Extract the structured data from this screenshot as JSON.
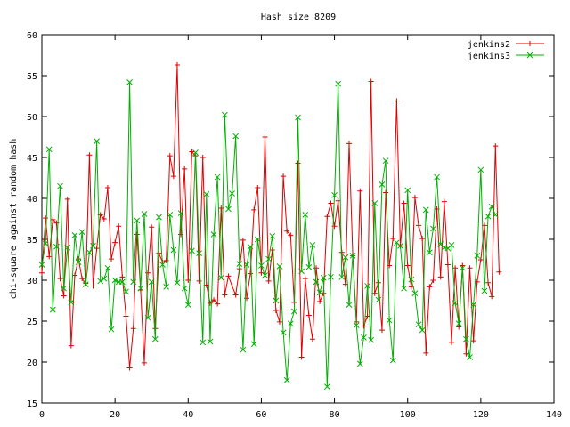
{
  "chart_data": {
    "type": "line",
    "title": "Hash size 8209",
    "xlabel": "",
    "ylabel": "chi-square against random hash",
    "xlim": [
      0,
      140
    ],
    "ylim": [
      15,
      60
    ],
    "xticks": [
      0,
      20,
      40,
      60,
      80,
      100,
      120,
      140
    ],
    "yticks": [
      15,
      20,
      25,
      30,
      35,
      40,
      45,
      50,
      55,
      60
    ],
    "grid": false,
    "legend_position": "top-right",
    "series": [
      {
        "name": "jenkins2",
        "color": "#e00000",
        "marker": "plus",
        "values": [
          30.9,
          37.6,
          32.9,
          37.4,
          37.0,
          30.2,
          28.1,
          39.9,
          22.0,
          30.6,
          32.6,
          30.2,
          29.6,
          45.3,
          29.3,
          33.9,
          38.0,
          37.5,
          41.3,
          32.6,
          34.6,
          36.6,
          30.4,
          25.6,
          19.3,
          24.1,
          35.6,
          28.8,
          19.9,
          30.9,
          36.5,
          24.1,
          33.3,
          32.2,
          32.4,
          45.2,
          42.7,
          56.3,
          35.6,
          43.6,
          30.0,
          45.7,
          45.2,
          29.9,
          45.0,
          29.4,
          27.2,
          27.6,
          27.1,
          38.8,
          28.2,
          30.5,
          29.3,
          28.2,
          31.4,
          34.9,
          27.8,
          30.8,
          38.6,
          41.3,
          30.9,
          47.5,
          29.9,
          33.7,
          26.3,
          24.9,
          42.7,
          36.0,
          35.5,
          27.3,
          44.3,
          20.6,
          30.2,
          25.7,
          22.8,
          31.5,
          27.4,
          28.4,
          37.8,
          39.4,
          36.6,
          39.7,
          33.4,
          29.5,
          46.7,
          33.0,
          24.9,
          40.9,
          24.4,
          25.6,
          54.3,
          28.4,
          29.7,
          23.9,
          40.7,
          31.8,
          35.1,
          51.9,
          34.2,
          39.4,
          31.8,
          29.2,
          40.1,
          36.7,
          35.1,
          21.1,
          29.2,
          30.0,
          38.7,
          30.4,
          39.6,
          31.9,
          22.4,
          31.5,
          24.3,
          31.8,
          21.0,
          31.5,
          22.6,
          29.8,
          32.5,
          36.7,
          29.7,
          28.0,
          46.4,
          31.0
        ]
      },
      {
        "name": "jenkins3",
        "color": "#00b000",
        "marker": "x",
        "values": [
          31.9,
          34.5,
          46.0,
          26.4,
          34.1,
          41.5,
          29.0,
          34.0,
          27.3,
          35.5,
          32.2,
          35.9,
          29.5,
          33.4,
          34.2,
          47.0,
          29.9,
          30.2,
          31.5,
          24.0,
          30.0,
          29.8,
          29.8,
          28.6,
          54.2,
          29.8,
          37.3,
          29.0,
          38.1,
          25.4,
          29.8,
          22.8,
          37.7,
          31.9,
          29.2,
          38.0,
          33.7,
          29.7,
          38.2,
          29.0,
          27.0,
          33.6,
          45.6,
          33.3,
          22.4,
          40.5,
          22.5,
          35.6,
          42.6,
          30.3,
          50.2,
          38.7,
          40.6,
          47.6,
          32.0,
          21.5,
          31.9,
          34.1,
          22.2,
          35.0,
          31.8,
          30.6,
          32.6,
          35.4,
          27.5,
          31.7,
          23.6,
          17.8,
          24.7,
          26.2,
          49.9,
          31.1,
          38.0,
          31.6,
          34.3,
          29.8,
          28.5,
          30.3,
          17.0,
          30.4,
          40.4,
          54.0,
          30.4,
          32.8,
          27.0,
          33.0,
          24.5,
          19.8,
          23.0,
          29.3,
          22.7,
          39.4,
          27.6,
          41.7,
          44.6,
          25.1,
          20.2,
          34.6,
          34.2,
          29.0,
          41.0,
          30.1,
          28.4,
          24.6,
          23.9,
          38.6,
          33.4,
          36.3,
          42.6,
          34.4,
          34.0,
          33.9,
          34.3,
          27.2,
          24.7,
          31.5,
          22.8,
          20.6,
          27.0,
          33.0,
          43.5,
          28.7,
          37.8,
          39.0,
          38.0
        ]
      }
    ]
  }
}
